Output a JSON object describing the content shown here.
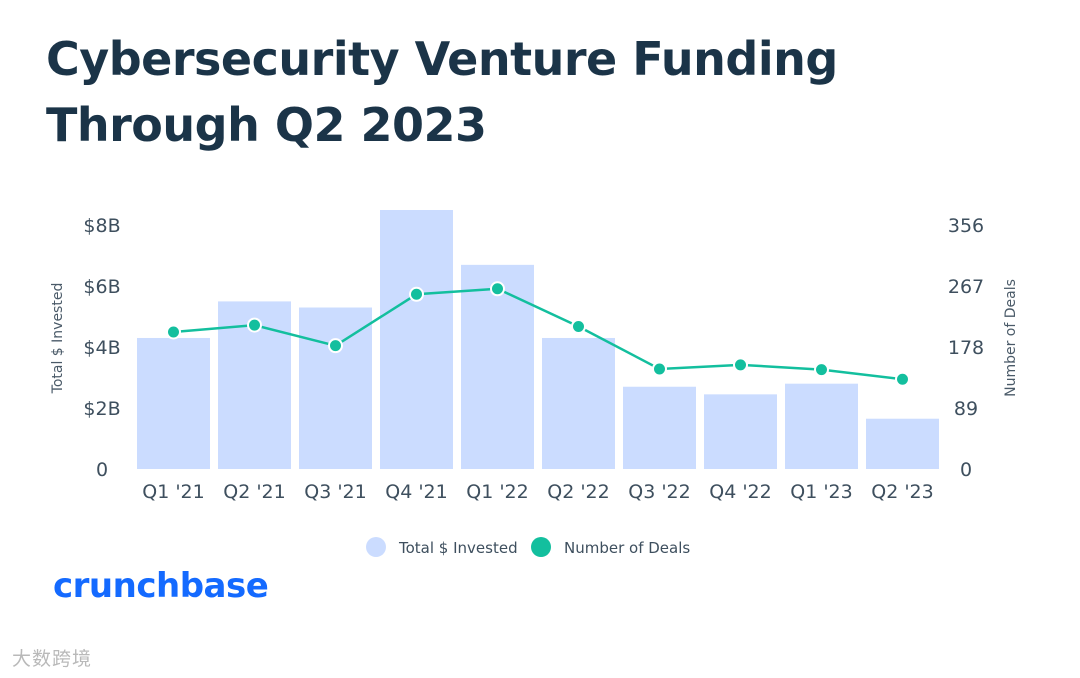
{
  "title": "Cybersecurity Venture Funding Through Q2 2023",
  "brand": {
    "logo_text": "crunchbase",
    "color": "#146aff"
  },
  "watermark": "大数跨境",
  "colors": {
    "bar": "#cbdcff",
    "line": "#13bf9e",
    "text": "#1b3448"
  },
  "chart_data": {
    "type": "bar+line",
    "categories": [
      "Q1 '21",
      "Q2 '21",
      "Q3 '21",
      "Q4 '21",
      "Q1 '22",
      "Q2 '22",
      "Q3 '22",
      "Q4 '22",
      "Q1 '23",
      "Q2 '23"
    ],
    "series": [
      {
        "name": "Total $ Invested",
        "type": "bar",
        "axis": "left",
        "unit": "$B",
        "values": [
          4.3,
          5.5,
          5.3,
          8.5,
          6.7,
          4.3,
          2.7,
          2.45,
          2.8,
          1.65
        ]
      },
      {
        "name": "Number of Deals",
        "type": "line",
        "axis": "right",
        "values": [
          200,
          210,
          180,
          255,
          263,
          208,
          146,
          152,
          145,
          131
        ]
      }
    ],
    "left_axis": {
      "label": "Total $ Invested",
      "ylim": [
        0,
        8.5
      ],
      "ticks": [
        0,
        2,
        4,
        6,
        8
      ],
      "tick_labels": [
        "0",
        "$2B",
        "$4B",
        "$6B",
        "$8B"
      ]
    },
    "right_axis": {
      "label": "Number of Deals",
      "ylim": [
        0,
        378
      ],
      "ticks": [
        0,
        89,
        178,
        267,
        356
      ],
      "tick_labels": [
        "0",
        "89",
        "178",
        "267",
        "356"
      ]
    },
    "legend": [
      "Total $ Invested",
      "Number of Deals"
    ],
    "legend_position": "bottom-center",
    "grid": false
  }
}
